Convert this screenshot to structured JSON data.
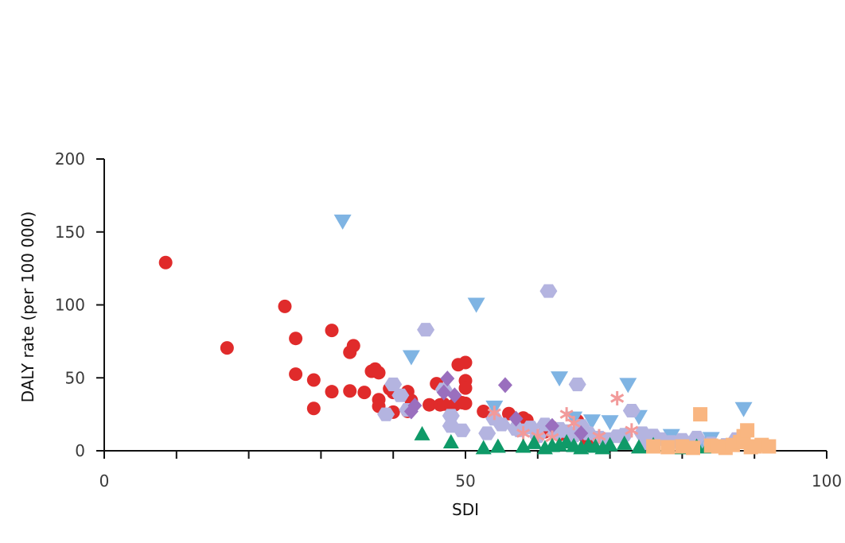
{
  "chart_data": {
    "type": "scatter",
    "title": "",
    "xlabel": "SDI",
    "ylabel": "DALY rate (per 100 000)",
    "xlim": [
      0,
      100
    ],
    "ylim": [
      0,
      200
    ],
    "x_tick_labels": [
      "0",
      "50",
      "100"
    ],
    "x_major_ticks": [
      0,
      50,
      100
    ],
    "x_minor_ticks": [
      10,
      20,
      30,
      40,
      60,
      70,
      80,
      90
    ],
    "y_ticks": [
      0,
      50,
      100,
      150,
      200
    ],
    "y_tick_labels": [
      "0",
      "50",
      "100",
      "150",
      "200"
    ],
    "grid": false,
    "legend": "none",
    "series": [
      {
        "marker": "circle",
        "color": "#e02b2b",
        "points": [
          [
            8.5,
            129
          ],
          [
            17,
            70.5
          ],
          [
            25,
            99
          ],
          [
            26.5,
            77
          ],
          [
            26.5,
            52.5
          ],
          [
            29,
            48.5
          ],
          [
            29,
            29
          ],
          [
            31.5,
            82.5
          ],
          [
            31.5,
            40.5
          ],
          [
            34,
            67.5
          ],
          [
            34,
            41
          ],
          [
            34.5,
            72
          ],
          [
            36,
            40
          ],
          [
            37,
            54.5
          ],
          [
            37.5,
            56
          ],
          [
            38,
            53.5
          ],
          [
            38,
            35
          ],
          [
            38,
            30.5
          ],
          [
            39.5,
            42.5
          ],
          [
            40,
            40
          ],
          [
            40,
            26.5
          ],
          [
            42,
            40.5
          ],
          [
            42,
            27
          ],
          [
            42.5,
            34.5
          ],
          [
            45,
            31.5
          ],
          [
            46,
            46
          ],
          [
            46.5,
            31.5
          ],
          [
            47,
            32
          ],
          [
            48,
            30
          ],
          [
            48.5,
            31.5
          ],
          [
            49,
            59
          ],
          [
            49.5,
            33
          ],
          [
            50,
            60.5
          ],
          [
            50,
            48
          ],
          [
            50,
            43
          ],
          [
            50,
            32.5
          ],
          [
            52.5,
            27
          ],
          [
            56,
            25.5
          ],
          [
            58,
            22.5
          ],
          [
            58.5,
            21
          ],
          [
            61,
            13
          ],
          [
            62,
            16
          ],
          [
            63,
            11
          ],
          [
            65.5,
            20.5
          ],
          [
            66,
            15
          ],
          [
            66.5,
            10
          ],
          [
            67,
            7.5
          ]
        ]
      },
      {
        "marker": "triangle-down",
        "color": "#7fb4e3",
        "points": [
          [
            33,
            157
          ],
          [
            42.5,
            64
          ],
          [
            51.5,
            100
          ],
          [
            54,
            29.5
          ],
          [
            63,
            49.5
          ],
          [
            65,
            22
          ],
          [
            67.5,
            20
          ],
          [
            70,
            19.5
          ],
          [
            72.5,
            45
          ],
          [
            74,
            23
          ],
          [
            78.5,
            10
          ],
          [
            82.5,
            5
          ],
          [
            84,
            8
          ],
          [
            88.5,
            28.5
          ]
        ]
      },
      {
        "marker": "hexagon",
        "color": "#b4b4e0",
        "points": [
          [
            39,
            25
          ],
          [
            40,
            45.5
          ],
          [
            41,
            38
          ],
          [
            42,
            28
          ],
          [
            44.5,
            83
          ],
          [
            47,
            42
          ],
          [
            48,
            24
          ],
          [
            48,
            17
          ],
          [
            49.5,
            14
          ],
          [
            53,
            12
          ],
          [
            54,
            22
          ],
          [
            55,
            18
          ],
          [
            57,
            15
          ],
          [
            57.5,
            14
          ],
          [
            59,
            16
          ],
          [
            60,
            10
          ],
          [
            61,
            18
          ],
          [
            61.5,
            109.5
          ],
          [
            62.5,
            12
          ],
          [
            63,
            15
          ],
          [
            64,
            13.5
          ],
          [
            65,
            10.5
          ],
          [
            65.5,
            45.5
          ],
          [
            66,
            17
          ],
          [
            67,
            12
          ],
          [
            68.5,
            9
          ],
          [
            69.5,
            8
          ],
          [
            71,
            10
          ],
          [
            72,
            11
          ],
          [
            73,
            27.5
          ],
          [
            74.5,
            12
          ],
          [
            75,
            5
          ],
          [
            76,
            10.5
          ],
          [
            77,
            8
          ],
          [
            78.5,
            6
          ],
          [
            80,
            7.5
          ],
          [
            81,
            5.5
          ],
          [
            82,
            9
          ],
          [
            84,
            5
          ],
          [
            86,
            4
          ],
          [
            87.5,
            8
          ],
          [
            88,
            6
          ]
        ]
      },
      {
        "marker": "diamond",
        "color": "#9a6fbe",
        "points": [
          [
            42.5,
            27
          ],
          [
            43,
            31
          ],
          [
            47,
            40
          ],
          [
            47.5,
            49.5
          ],
          [
            48.5,
            38
          ],
          [
            55.5,
            45
          ],
          [
            57,
            22
          ],
          [
            62,
            17
          ],
          [
            66,
            12
          ]
        ]
      },
      {
        "marker": "asterisk",
        "color": "#f29a9a",
        "points": [
          [
            54,
            26
          ],
          [
            58,
            12
          ],
          [
            60,
            10
          ],
          [
            62,
            9
          ],
          [
            64,
            25
          ],
          [
            65,
            19
          ],
          [
            68.5,
            10
          ],
          [
            71,
            36
          ],
          [
            73,
            14
          ]
        ]
      },
      {
        "marker": "triangle-up",
        "color": "#0f9a68",
        "points": [
          [
            44,
            11.5
          ],
          [
            48,
            6
          ],
          [
            52.5,
            2
          ],
          [
            54.5,
            3
          ],
          [
            58,
            3
          ],
          [
            59.5,
            5.5
          ],
          [
            61,
            2
          ],
          [
            62,
            3.5
          ],
          [
            63,
            4
          ],
          [
            64,
            6
          ],
          [
            65,
            3.5
          ],
          [
            66,
            2
          ],
          [
            67,
            4
          ],
          [
            68,
            3
          ],
          [
            69,
            2
          ],
          [
            70,
            4
          ],
          [
            72,
            5
          ],
          [
            74,
            2.5
          ],
          [
            76,
            4
          ],
          [
            80,
            2
          ],
          [
            82,
            3
          ],
          [
            83.5,
            2.5
          ]
        ]
      },
      {
        "marker": "square",
        "color": "#f9b681",
        "points": [
          [
            76,
            3
          ],
          [
            78,
            2.5
          ],
          [
            80,
            3
          ],
          [
            81.5,
            2
          ],
          [
            82.5,
            25
          ],
          [
            84,
            3.5
          ],
          [
            85,
            3
          ],
          [
            86,
            2
          ],
          [
            87,
            4
          ],
          [
            88,
            6
          ],
          [
            88.5,
            10
          ],
          [
            89,
            14
          ],
          [
            89.5,
            2.5
          ],
          [
            90,
            3
          ],
          [
            91,
            4
          ],
          [
            92,
            3
          ]
        ]
      }
    ]
  }
}
